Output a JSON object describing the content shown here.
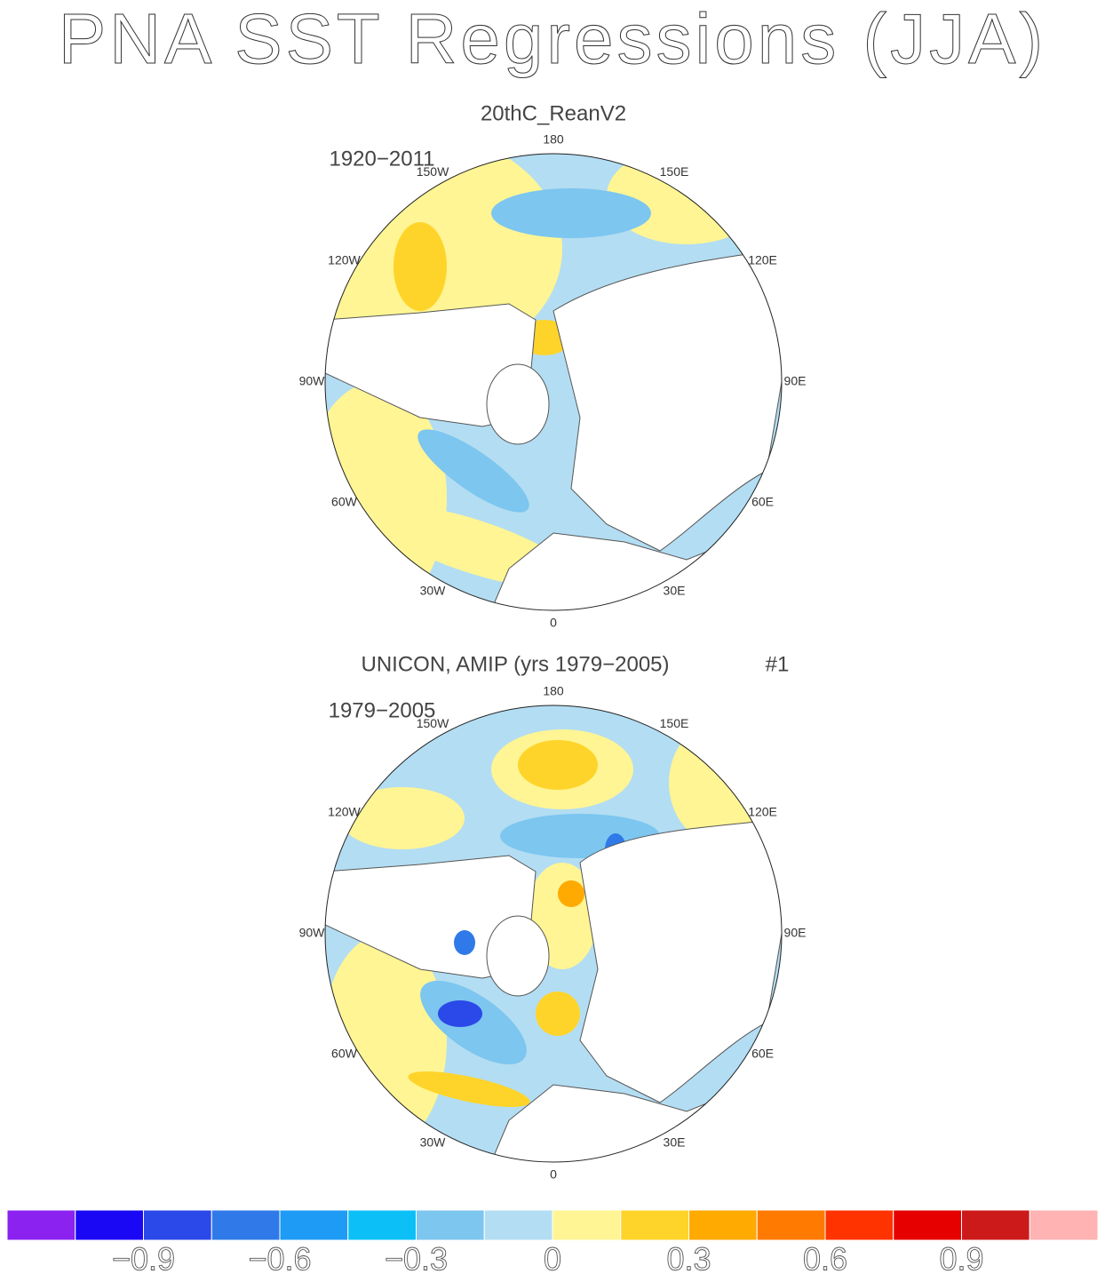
{
  "title": "PNA SST Regressions (JJA)",
  "panels": [
    {
      "title": "20thC_ReanV2",
      "period": "1920−2011",
      "lon_labels": [
        "0",
        "30E",
        "60E",
        "90E",
        "120E",
        "150E",
        "180",
        "150W",
        "120W",
        "90W",
        "60W",
        "30W"
      ]
    },
    {
      "title": "UNICON, AMIP (yrs 1979−2005)",
      "run": "#1",
      "period": "1979−2005",
      "lon_labels": [
        "0",
        "30E",
        "60E",
        "90E",
        "120E",
        "150E",
        "180",
        "150W",
        "120W",
        "90W",
        "60W",
        "30W"
      ]
    }
  ],
  "colorbar": {
    "colors": [
      "#8b22f0",
      "#1a08f5",
      "#2b48e8",
      "#2f7ae8",
      "#1e9bf5",
      "#0cc0f7",
      "#7cc6f0",
      "#b3ddf2",
      "#fff594",
      "#ffd42a",
      "#ffaa00",
      "#ff7a00",
      "#ff3300",
      "#e60000",
      "#cc1a1a",
      "#ffb3b3"
    ],
    "lim": [
      -1.2,
      1.2
    ],
    "ticks": [
      {
        "value": -0.9,
        "label": "−0.9"
      },
      {
        "value": -0.6,
        "label": "−0.6"
      },
      {
        "value": -0.3,
        "label": "−0.3"
      },
      0,
      0.3,
      0.6,
      0.9
    ]
  }
}
